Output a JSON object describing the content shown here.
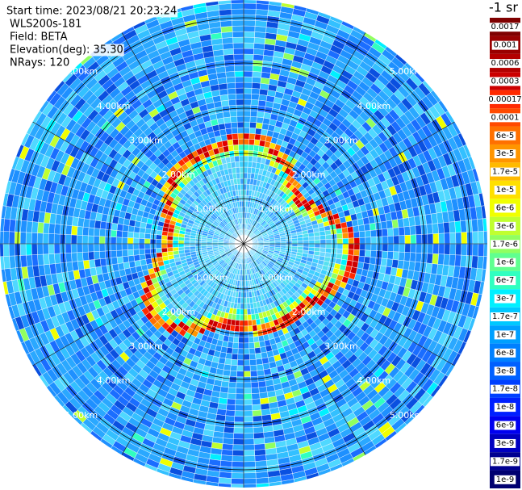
{
  "header": {
    "lines": [
      "Start time: 2023/08/21 20:23:24",
      "WLS200s-181",
      "Field: BETA",
      "Elevation(deg): 35.30",
      "NRays: 120"
    ]
  },
  "rings": [
    {
      "value": 1,
      "label": "1.00km"
    },
    {
      "value": 2,
      "label": "2.00km"
    },
    {
      "value": 3,
      "label": "3.00km"
    },
    {
      "value": 4,
      "label": "4.00km"
    },
    {
      "value": 5,
      "label": "5.00km"
    }
  ],
  "colorbar": {
    "title": "-1 sr",
    "labels": [
      "0.0017",
      "0.001",
      "0.0006",
      "0.0003",
      "0.00017",
      "0.0001",
      "6e-5",
      "3e-5",
      "1.7e-5",
      "1e-5",
      "6e-6",
      "3e-6",
      "1.7e-6",
      "1e-6",
      "6e-7",
      "3e-7",
      "1.7e-7",
      "1e-7",
      "6e-8",
      "3e-8",
      "1.7e-8",
      "1e-8",
      "6e-9",
      "3e-9",
      "1.7e-9",
      "1e-9"
    ],
    "colors": [
      "#7f0000",
      "#990000",
      "#b30000",
      "#cc0000",
      "#ff2a00",
      "#ff4a00",
      "#ff7000",
      "#ff9500",
      "#ffba00",
      "#ffe000",
      "#f0ff00",
      "#c0ff30",
      "#90ff60",
      "#60ff90",
      "#30ffc0",
      "#00f0ff",
      "#00c8ff",
      "#00a0ff",
      "#0080ff",
      "#0060ff",
      "#0040ff",
      "#0020ff",
      "#0000f0",
      "#0000c0",
      "#000090",
      "#000070"
    ]
  }
}
